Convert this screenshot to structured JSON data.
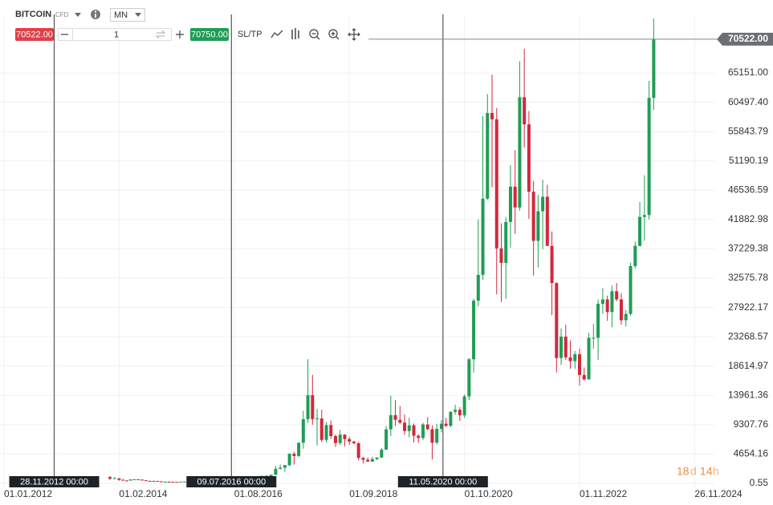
{
  "toolbar": {
    "symbol": "BITCOIN",
    "symbol_type": "CFD",
    "timeframe": "MN",
    "sell_price": "70522.00",
    "quantity": "1",
    "buy_price": "70750.00",
    "sl_tp": "SL/TP"
  },
  "countdown": {
    "days": "18",
    "days_unit": "d",
    "hours": "14",
    "hours_unit": "h"
  },
  "chart_data": {
    "type": "candlestick",
    "up_color": "#1f9d55",
    "down_color": "#d1283c",
    "grid": true,
    "ylim": [
      -640,
      74450
    ],
    "yticks": [
      {
        "value": 0.55,
        "label": "0.55"
      },
      {
        "value": 4654.16,
        "label": "4654.16"
      },
      {
        "value": 9307.76,
        "label": "9307.76"
      },
      {
        "value": 13961.36,
        "label": "13961.36"
      },
      {
        "value": 18614.97,
        "label": "18614.97"
      },
      {
        "value": 23268.57,
        "label": "23268.57"
      },
      {
        "value": 27922.17,
        "label": "27922.17"
      },
      {
        "value": 32575.78,
        "label": "32575.78"
      },
      {
        "value": 37229.38,
        "label": "37229.38"
      },
      {
        "value": 41882.98,
        "label": "41882.98"
      },
      {
        "value": 46536.59,
        "label": "46536.59"
      },
      {
        "value": 51190.19,
        "label": "51190.19"
      },
      {
        "value": 55843.79,
        "label": "55843.79"
      },
      {
        "value": 60497.4,
        "label": "60497.40"
      },
      {
        "value": 65151.0,
        "label": "65151.00"
      }
    ],
    "xticks": [
      "01.01.2012",
      "01.02.2014",
      "01.08.2016",
      "01.09.2018",
      "01.10.2020",
      "01.11.2022",
      "26.11.2024"
    ],
    "current_price": {
      "value": 70522,
      "label": "70522.00"
    },
    "markers": [
      {
        "x": "28.11.2012",
        "label": "28.11.2012 00:00"
      },
      {
        "x": "09.07.2016",
        "label": "09.07.2016 00:00"
      },
      {
        "x": "11.05.2020",
        "label": "11.05.2020 00:00"
      }
    ],
    "x": [
      "01.12.2013",
      "01.01.2014",
      "01.02.2014",
      "01.03.2014",
      "01.04.2014",
      "01.05.2014",
      "01.06.2014",
      "01.07.2014",
      "01.08.2014",
      "01.09.2014",
      "01.10.2014",
      "01.11.2014",
      "01.12.2014",
      "01.01.2015",
      "01.02.2015",
      "01.03.2015",
      "01.04.2015",
      "01.05.2015",
      "01.06.2015",
      "01.07.2015",
      "01.08.2015",
      "01.09.2015",
      "01.10.2015",
      "01.11.2015",
      "01.12.2015",
      "01.01.2016",
      "01.02.2016",
      "01.03.2016",
      "01.04.2016",
      "01.05.2016",
      "01.06.2016",
      "01.07.2016",
      "01.08.2016",
      "01.09.2016",
      "01.10.2016",
      "01.11.2016",
      "01.12.2016",
      "01.01.2017",
      "01.02.2017",
      "01.03.2017",
      "01.04.2017",
      "01.05.2017",
      "01.06.2017",
      "01.07.2017",
      "01.08.2017",
      "01.09.2017",
      "01.10.2017",
      "01.11.2017",
      "01.12.2017",
      "01.01.2018",
      "01.02.2018",
      "01.03.2018",
      "01.04.2018",
      "01.05.2018",
      "01.06.2018",
      "01.07.2018",
      "01.08.2018",
      "01.09.2018",
      "01.10.2018",
      "01.11.2018",
      "01.12.2018",
      "01.01.2019",
      "01.02.2019",
      "01.03.2019",
      "01.04.2019",
      "01.05.2019",
      "01.06.2019",
      "01.07.2019",
      "01.08.2019",
      "01.09.2019",
      "01.10.2019",
      "01.11.2019",
      "01.12.2019",
      "01.01.2020",
      "01.02.2020",
      "01.03.2020",
      "01.04.2020",
      "01.05.2020",
      "01.06.2020",
      "01.07.2020",
      "01.08.2020",
      "01.09.2020",
      "01.10.2020",
      "01.11.2020",
      "01.12.2020",
      "01.01.2021",
      "01.02.2021",
      "01.03.2021",
      "01.04.2021",
      "01.05.2021",
      "01.06.2021",
      "01.07.2021",
      "01.08.2021",
      "01.09.2021",
      "01.10.2021",
      "01.11.2021",
      "01.12.2021",
      "01.01.2022",
      "01.02.2022",
      "01.03.2022",
      "01.04.2022",
      "01.05.2022",
      "01.06.2022",
      "01.07.2022",
      "01.08.2022",
      "01.09.2022",
      "01.10.2022",
      "01.11.2022",
      "01.12.2022",
      "01.01.2023",
      "01.02.2023",
      "01.03.2023",
      "01.04.2023",
      "01.05.2023",
      "01.06.2023",
      "01.07.2023",
      "01.08.2023",
      "01.09.2023",
      "01.10.2023",
      "01.11.2023",
      "01.12.2023",
      "01.01.2024",
      "01.02.2024",
      "01.03.2024"
    ],
    "open": [
      1000,
      730,
      800,
      550,
      450,
      440,
      620,
      640,
      590,
      480,
      390,
      340,
      380,
      320,
      220,
      250,
      240,
      235,
      230,
      265,
      285,
      230,
      236,
      315,
      378,
      430,
      370,
      437,
      416,
      448,
      530,
      675,
      625,
      575,
      610,
      700,
      745,
      965,
      970,
      1190,
      1080,
      1350,
      2300,
      2480,
      2880,
      4700,
      4340,
      6450,
      10200,
      14000,
      10200,
      10300,
      6900,
      9250,
      7500,
      6400,
      7730,
      7030,
      6630,
      6370,
      4040,
      3740,
      3460,
      3850,
      4100,
      5350,
      8570,
      10820,
      10080,
      9630,
      8300,
      9200,
      7570,
      7200,
      9350,
      8600,
      6450,
      8650,
      9460,
      9140,
      11350,
      11680,
      10800,
      13800,
      19700,
      29000,
      33100,
      45200,
      58800,
      57800,
      37300,
      35000,
      41500,
      47100,
      43800,
      61300,
      57000,
      46300,
      38500,
      43200,
      45500,
      37700,
      31800,
      19900,
      23300,
      20000,
      19400,
      20500,
      17200,
      16500,
      23100,
      23100,
      28500,
      29200,
      27200,
      30500,
      29200,
      25900,
      26900,
      34500,
      37700,
      42300,
      42600,
      61200
    ],
    "high": [
      1150,
      1000,
      800,
      700,
      530,
      630,
      680,
      660,
      600,
      500,
      420,
      460,
      390,
      320,
      280,
      300,
      260,
      250,
      270,
      320,
      300,
      245,
      330,
      500,
      470,
      460,
      440,
      440,
      470,
      550,
      780,
      700,
      630,
      620,
      740,
      760,
      980,
      1150,
      1200,
      1300,
      1400,
      2760,
      2980,
      2920,
      4750,
      5000,
      6450,
      11500,
      19700,
      17200,
      11800,
      11700,
      9750,
      9990,
      7750,
      8500,
      7750,
      7400,
      6750,
      6560,
      4200,
      4100,
      4200,
      4100,
      5600,
      9100,
      13900,
      13200,
      12300,
      10900,
      10400,
      9500,
      7750,
      9600,
      10500,
      9200,
      9450,
      10070,
      10400,
      11450,
      12480,
      12100,
      14100,
      19900,
      29300,
      41900,
      58300,
      61800,
      64900,
      59600,
      41300,
      42300,
      50500,
      52900,
      67000,
      69000,
      59100,
      48000,
      45800,
      48200,
      47400,
      40000,
      31900,
      24600,
      25200,
      22700,
      21000,
      21400,
      18400,
      23900,
      25300,
      29200,
      31000,
      29800,
      31400,
      31800,
      30200,
      27500,
      35000,
      38400,
      44700,
      48900,
      63900,
      73800
    ],
    "low": [
      520,
      700,
      420,
      450,
      340,
      420,
      550,
      560,
      430,
      370,
      280,
      320,
      300,
      160,
      210,
      240,
      210,
      230,
      220,
      250,
      200,
      225,
      235,
      300,
      350,
      350,
      370,
      400,
      415,
      440,
      530,
      580,
      520,
      570,
      605,
      690,
      740,
      750,
      920,
      890,
      1060,
      1350,
      2200,
      1830,
      2700,
      2980,
      4150,
      5500,
      9600,
      9300,
      6000,
      6600,
      6450,
      7050,
      5780,
      6100,
      5880,
      6100,
      6200,
      3650,
      3150,
      3400,
      3400,
      3700,
      4050,
      5330,
      7500,
      9100,
      9400,
      7700,
      7300,
      6500,
      6430,
      6900,
      8400,
      3800,
      6150,
      8100,
      8900,
      8900,
      10900,
      9900,
      10400,
      13200,
      17600,
      28100,
      32300,
      45000,
      47000,
      30000,
      28800,
      29300,
      37400,
      39600,
      43300,
      53300,
      42000,
      33000,
      34300,
      37200,
      37700,
      26700,
      17600,
      18800,
      19600,
      18200,
      18200,
      15500,
      16300,
      16500,
      21400,
      19600,
      26900,
      25800,
      24800,
      28900,
      25200,
      24900,
      26600,
      34100,
      37600,
      38500,
      41900,
      59300
    ],
    "close": [
      730,
      800,
      550,
      450,
      440,
      620,
      640,
      590,
      480,
      390,
      340,
      380,
      320,
      220,
      250,
      240,
      235,
      230,
      265,
      285,
      230,
      236,
      315,
      378,
      430,
      370,
      437,
      416,
      448,
      530,
      675,
      625,
      575,
      610,
      700,
      745,
      965,
      970,
      1190,
      1080,
      1350,
      2300,
      2480,
      2880,
      4700,
      4340,
      6450,
      10200,
      14000,
      10200,
      10300,
      6900,
      9250,
      7500,
      6400,
      7730,
      7030,
      6630,
      6370,
      4040,
      3740,
      3460,
      3850,
      4100,
      5350,
      8570,
      10820,
      10080,
      9630,
      8300,
      9200,
      7570,
      7200,
      9350,
      8600,
      6450,
      8650,
      9460,
      9140,
      11350,
      11680,
      10800,
      13800,
      19700,
      29000,
      33100,
      45200,
      58800,
      57800,
      37300,
      35000,
      41500,
      47100,
      43800,
      61300,
      57000,
      46300,
      38500,
      43200,
      45500,
      37700,
      31800,
      19900,
      23300,
      20000,
      19400,
      20500,
      17200,
      16500,
      23100,
      23100,
      28500,
      29200,
      27200,
      30500,
      29200,
      25900,
      26900,
      34500,
      37700,
      42300,
      42600,
      61200,
      70522
    ]
  }
}
